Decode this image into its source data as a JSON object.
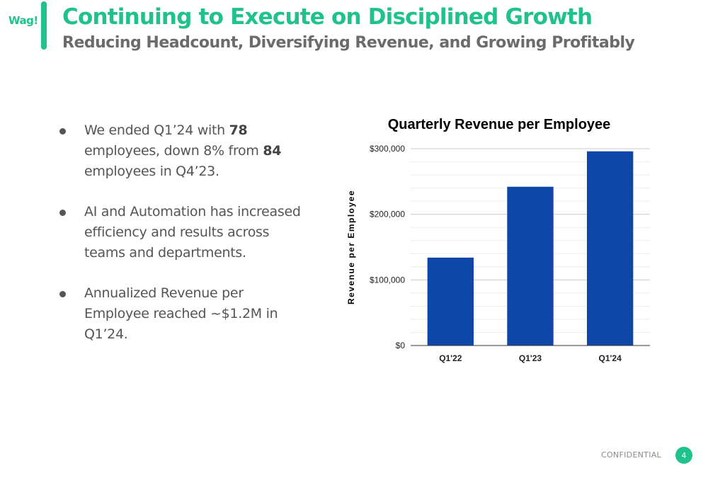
{
  "logo": {
    "text": "Wag!"
  },
  "header": {
    "title": "Continuing to Execute on Disciplined Growth",
    "subtitle": "Reducing Headcount, Diversifying Revenue, and Growing Profitably"
  },
  "bullets": [
    {
      "parts": [
        {
          "text": "We ended Q1’24 with ",
          "bold": false
        },
        {
          "text": "78",
          "bold": true
        },
        {
          "text": " employees, down 8% from ",
          "bold": false
        },
        {
          "text": "84",
          "bold": true
        },
        {
          "text": " employees in Q4’23.",
          "bold": false
        }
      ]
    },
    {
      "parts": [
        {
          "text": "AI and Automation has increased efficiency and results across teams and departments.",
          "bold": false
        }
      ]
    },
    {
      "parts": [
        {
          "text": "Annualized Revenue per Employee reached ~$1.2M in Q1’24.",
          "bold": false
        }
      ]
    }
  ],
  "chart_data": {
    "type": "bar",
    "title": "Quarterly Revenue per Employee",
    "xlabel": "",
    "ylabel": "Revenue per Employee",
    "categories": [
      "Q1'22",
      "Q1'23",
      "Q1'24"
    ],
    "values": [
      134000,
      242000,
      296000
    ],
    "ylim": [
      0,
      300000
    ],
    "yticks": [
      {
        "value": 0,
        "label": "$0"
      },
      {
        "value": 100000,
        "label": "$100,000"
      },
      {
        "value": 200000,
        "label": "$200,000"
      },
      {
        "value": 300000,
        "label": "$300,000"
      }
    ],
    "grid": true,
    "legend": "none",
    "bar_color": "#0f47a8"
  },
  "footer": {
    "label": "CONFIDENTIAL",
    "page_number": "4"
  },
  "colors": {
    "accent": "#1fc28b",
    "text": "#555555"
  }
}
